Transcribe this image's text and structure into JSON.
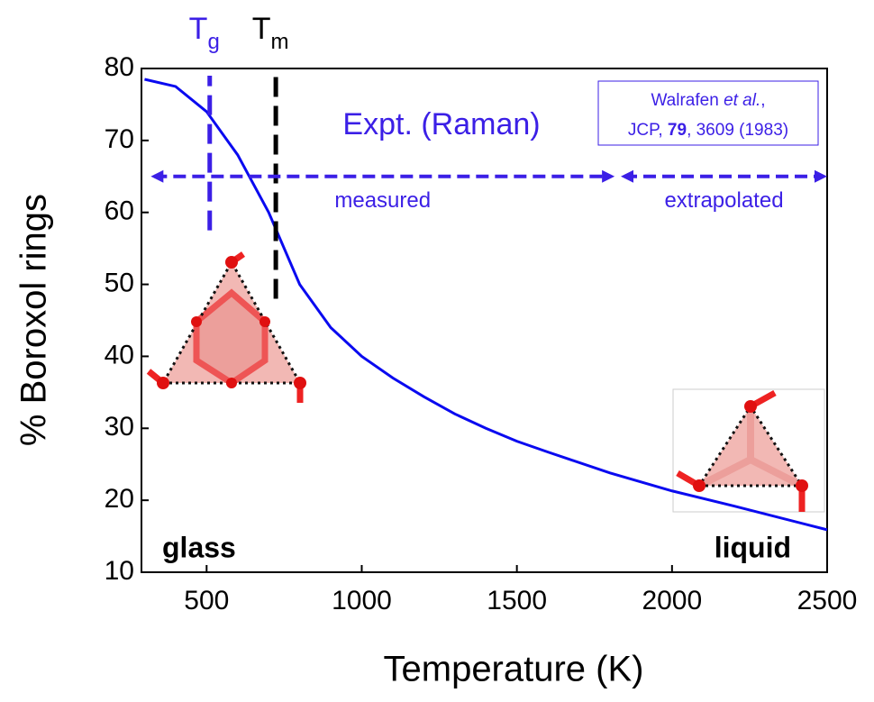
{
  "chart_data": {
    "type": "line",
    "x_label": "Temperature (K)",
    "y_label": "% Boroxol rings",
    "xlim": [
      290,
      2500
    ],
    "ylim": [
      10,
      80
    ],
    "xticks": [
      500,
      1000,
      1500,
      2000,
      2500
    ],
    "yticks": [
      10,
      20,
      30,
      40,
      50,
      60,
      70,
      80
    ],
    "series": [
      {
        "color": "#0a0af0",
        "x": [
          300,
          400,
          500,
          600,
          700,
          800,
          900,
          1000,
          1100,
          1200,
          1300,
          1400,
          1500,
          1600,
          1800,
          2000,
          2200,
          2500
        ],
        "values": [
          78.5,
          77.5,
          74,
          68,
          60,
          50,
          44,
          40,
          37,
          34.4,
          32,
          30,
          28.2,
          26.7,
          23.8,
          21.3,
          19.2,
          15.9
        ]
      }
    ],
    "vlines": [
      {
        "label": "T",
        "sub": "g",
        "x": 510,
        "ymin": 57.5,
        "ymax": 79,
        "color": "#3b1fe6"
      },
      {
        "label": "T",
        "sub": "m",
        "x": 723,
        "ymin": 48,
        "ymax": 79,
        "color": "#000000"
      }
    ],
    "annotation": "Expt. (Raman)",
    "annotation_color": "#3b1fe6",
    "ranges": [
      {
        "label": "measured",
        "from": 320,
        "to": 1815,
        "y": 65
      },
      {
        "label": "extrapolated",
        "from": 1835,
        "to": 2500,
        "y": 65
      }
    ],
    "citation": [
      [
        {
          "text": "Walrafen "
        },
        {
          "text": "et al.",
          "style": "italic"
        },
        {
          "text": ","
        }
      ],
      [
        {
          "text": "JCP, "
        },
        {
          "text": "79",
          "style": "bold"
        },
        {
          "text": ", 3609 (1983)"
        }
      ]
    ],
    "phase_labels": [
      "glass",
      "liquid"
    ]
  }
}
